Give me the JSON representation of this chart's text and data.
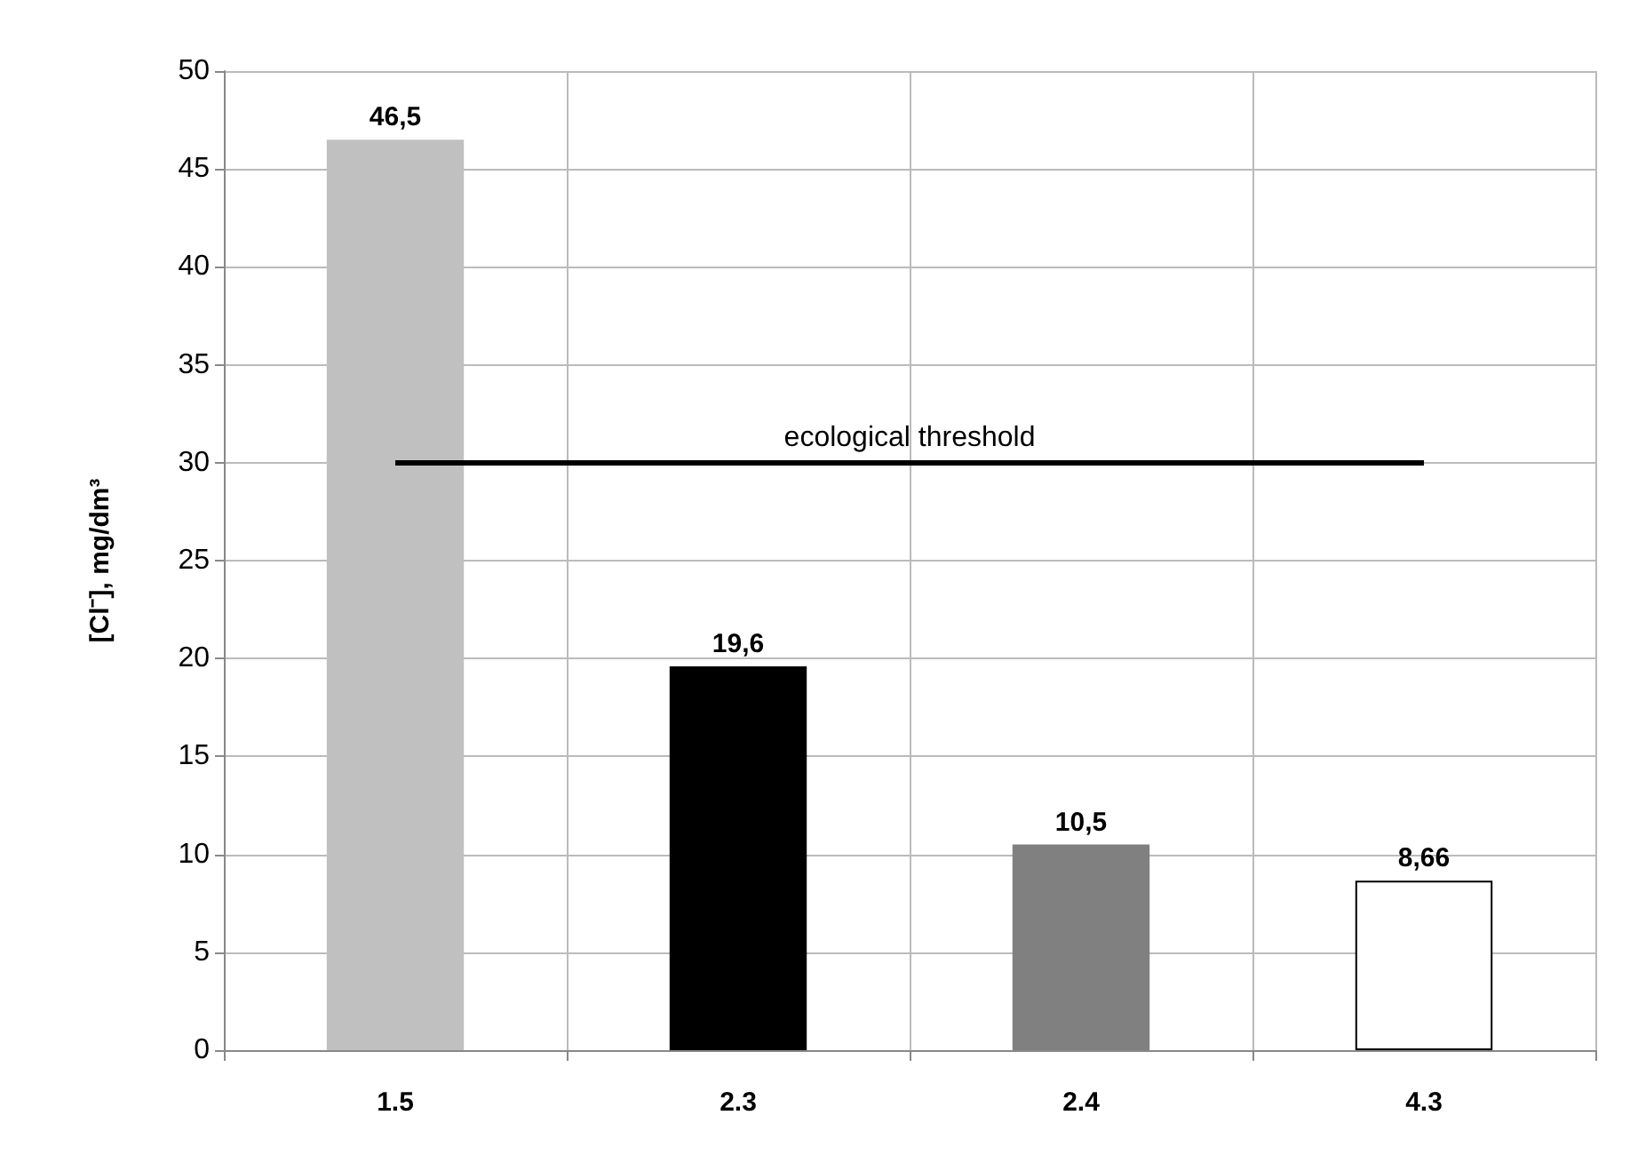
{
  "chart_data": {
    "type": "bar",
    "ylabel": "[Cl⁻], mg/dm³",
    "categories": [
      "1.5",
      "2.3",
      "2.4",
      "4.3"
    ],
    "values": [
      46.5,
      19.6,
      10.5,
      8.66
    ],
    "colors": [
      "#c0c0c0",
      "#000000",
      "#808080",
      "#ffffff"
    ],
    "value_labels": [
      "46,5",
      "19,6",
      "10,5",
      "8,66"
    ],
    "ylim": [
      0,
      50
    ],
    "yticks": [
      0,
      5,
      10,
      15,
      20,
      25,
      30,
      35,
      40,
      45,
      50
    ],
    "grid": true,
    "ref_lines": [
      {
        "axis": "y",
        "value": 30,
        "label": "ecological threshold",
        "color": "#000000",
        "line_style": "solid"
      }
    ]
  }
}
